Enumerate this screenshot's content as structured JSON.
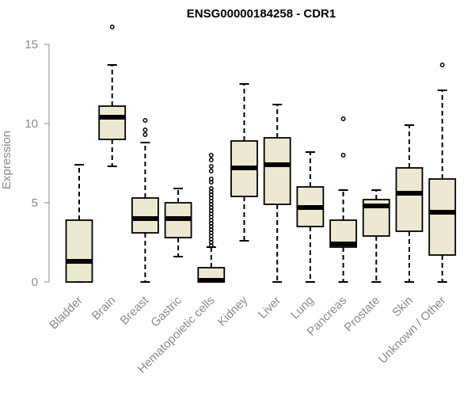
{
  "chart_data": {
    "type": "box",
    "title": "ENSG00000184258 - CDR1",
    "xlabel": "",
    "ylabel": "Expression",
    "ylim": [
      0,
      15.6
    ],
    "yticks": [
      0,
      5,
      10,
      15
    ],
    "grid": false,
    "box_color": "#ede8d2",
    "categories": [
      "Bladder",
      "Brain",
      "Breast",
      "Gastric",
      "Hematopoietic cells",
      "Kidney",
      "Liver",
      "Lung",
      "Pancreas",
      "Prostate",
      "Skin",
      "Unknown / Other"
    ],
    "boxes": [
      {
        "category": "Bladder",
        "whisker_low": 0,
        "q1": 0,
        "median": 1.3,
        "q3": 3.9,
        "whisker_high": 7.4,
        "outliers": []
      },
      {
        "category": "Brain",
        "whisker_low": 7.3,
        "q1": 9.0,
        "median": 10.4,
        "q3": 11.1,
        "whisker_high": 13.7,
        "outliers": [
          16.1
        ]
      },
      {
        "category": "Breast",
        "whisker_low": 0,
        "q1": 3.1,
        "median": 4.0,
        "q3": 5.3,
        "whisker_high": 8.8,
        "outliers": [
          9.3,
          9.6,
          10.2
        ]
      },
      {
        "category": "Gastric",
        "whisker_low": 1.6,
        "q1": 2.8,
        "median": 4.0,
        "q3": 5.0,
        "whisker_high": 5.9,
        "outliers": []
      },
      {
        "category": "Hematopoietic cells",
        "whisker_low": 0,
        "q1": 0,
        "median": 0.1,
        "q3": 0.9,
        "whisker_high": 2.2,
        "outliers": [
          2.3,
          2.5,
          2.7,
          2.9,
          3.1,
          3.3,
          3.5,
          3.7,
          3.9,
          4.1,
          4.3,
          4.5,
          4.7,
          4.9,
          5.1,
          5.3,
          5.5,
          5.7,
          5.9,
          6.3,
          6.5,
          7.0,
          7.3,
          7.7,
          8.0
        ]
      },
      {
        "category": "Kidney",
        "whisker_low": 2.6,
        "q1": 5.4,
        "median": 7.2,
        "q3": 8.9,
        "whisker_high": 12.5,
        "outliers": []
      },
      {
        "category": "Liver",
        "whisker_low": 0,
        "q1": 4.9,
        "median": 7.4,
        "q3": 9.1,
        "whisker_high": 11.2,
        "outliers": []
      },
      {
        "category": "Lung",
        "whisker_low": 0,
        "q1": 3.5,
        "median": 4.7,
        "q3": 6.0,
        "whisker_high": 8.2,
        "outliers": []
      },
      {
        "category": "Pancreas",
        "whisker_low": 0,
        "q1": 2.2,
        "median": 2.4,
        "q3": 3.9,
        "whisker_high": 5.8,
        "outliers": [
          8.0,
          10.3
        ]
      },
      {
        "category": "Prostate",
        "whisker_low": 0,
        "q1": 2.9,
        "median": 4.8,
        "q3": 5.2,
        "whisker_high": 5.8,
        "outliers": []
      },
      {
        "category": "Skin",
        "whisker_low": 0,
        "q1": 3.2,
        "median": 5.6,
        "q3": 7.2,
        "whisker_high": 9.9,
        "outliers": []
      },
      {
        "category": "Unknown / Other",
        "whisker_low": 0,
        "q1": 1.7,
        "median": 4.4,
        "q3": 6.5,
        "whisker_high": 12.1,
        "outliers": [
          13.7
        ]
      }
    ]
  }
}
